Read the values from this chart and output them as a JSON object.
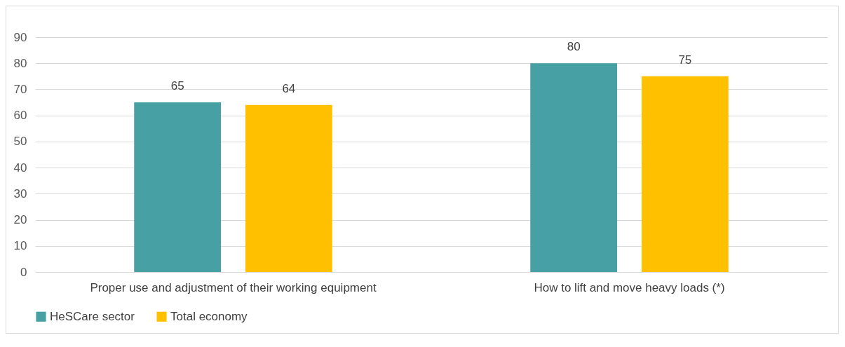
{
  "chart_data": {
    "type": "bar",
    "categories": [
      "Proper use and adjustment of their working equipment",
      "How to lift and move heavy loads (*)"
    ],
    "series": [
      {
        "name": "HeSCare sector",
        "color": "#46a0a4",
        "values": [
          65,
          80
        ]
      },
      {
        "name": "Total economy",
        "color": "#ffc000",
        "values": [
          64,
          75
        ]
      }
    ],
    "ylim": [
      0,
      90
    ],
    "yticks": [
      0,
      10,
      20,
      30,
      40,
      50,
      60,
      70,
      80,
      90
    ],
    "grid": "y",
    "legend": "bottom",
    "data_labels": true
  }
}
